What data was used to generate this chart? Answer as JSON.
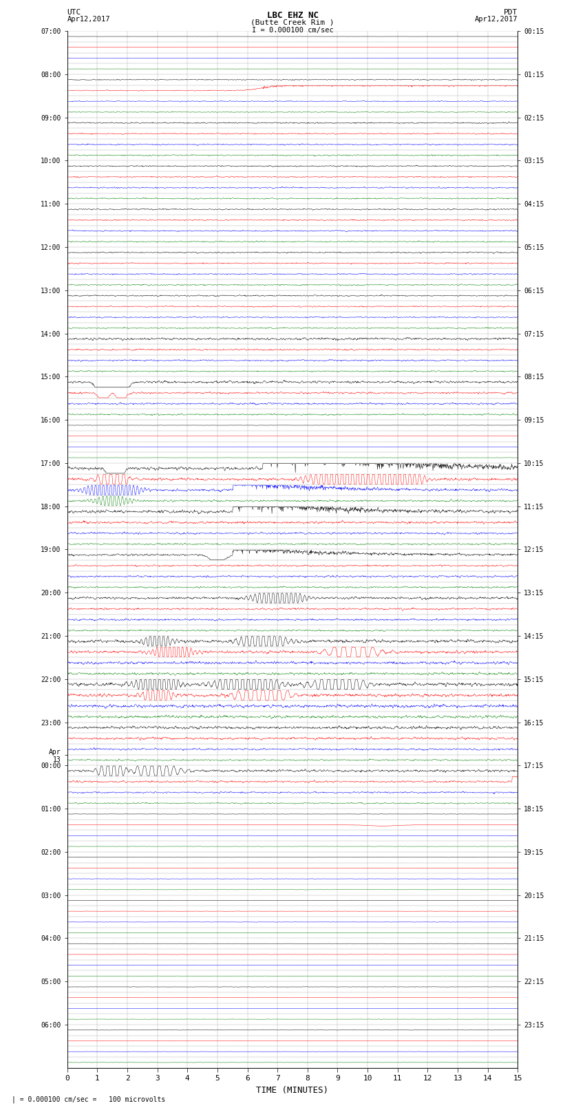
{
  "title_line1": "LBC EHZ NC",
  "title_line2": "(Butte Creek Rim )",
  "scale_text": "I = 0.000100 cm/sec",
  "left_label": "UTC",
  "left_date": "Apr12,2017",
  "right_label": "PDT",
  "right_date": "Apr12,2017",
  "bottom_label": "TIME (MINUTES)",
  "footer_text": "| = 0.000100 cm/sec =   100 microvolts",
  "xlabel_ticks": [
    0,
    1,
    2,
    3,
    4,
    5,
    6,
    7,
    8,
    9,
    10,
    11,
    12,
    13,
    14,
    15
  ],
  "xlim": [
    0,
    15
  ],
  "fig_width": 8.5,
  "fig_height": 16.13,
  "background_color": "#ffffff",
  "grid_color": "#aaaaaa",
  "trace_colors": [
    "black",
    "red",
    "blue",
    "green"
  ],
  "noise_seed": 12345,
  "utc_labels": [
    [
      "07:00",
      0
    ],
    [
      "08:00",
      4
    ],
    [
      "09:00",
      8
    ],
    [
      "10:00",
      12
    ],
    [
      "11:00",
      16
    ],
    [
      "12:00",
      20
    ],
    [
      "13:00",
      24
    ],
    [
      "14:00",
      28
    ],
    [
      "15:00",
      32
    ],
    [
      "16:00",
      36
    ],
    [
      "17:00",
      40
    ],
    [
      "18:00",
      44
    ],
    [
      "19:00",
      48
    ],
    [
      "20:00",
      52
    ],
    [
      "21:00",
      56
    ],
    [
      "22:00",
      60
    ],
    [
      "23:00",
      64
    ],
    [
      "Apr\n13",
      67
    ],
    [
      "00:00",
      68
    ],
    [
      "01:00",
      72
    ],
    [
      "02:00",
      76
    ],
    [
      "03:00",
      80
    ],
    [
      "04:00",
      84
    ],
    [
      "05:00",
      88
    ],
    [
      "06:00",
      92
    ]
  ],
  "pdt_labels": [
    [
      "00:15",
      0
    ],
    [
      "01:15",
      4
    ],
    [
      "02:15",
      8
    ],
    [
      "03:15",
      12
    ],
    [
      "04:15",
      16
    ],
    [
      "05:15",
      20
    ],
    [
      "06:15",
      24
    ],
    [
      "07:15",
      28
    ],
    [
      "08:15",
      32
    ],
    [
      "09:15",
      36
    ],
    [
      "10:15",
      40
    ],
    [
      "11:15",
      44
    ],
    [
      "12:15",
      48
    ],
    [
      "13:15",
      52
    ],
    [
      "14:15",
      56
    ],
    [
      "15:15",
      60
    ],
    [
      "16:15",
      64
    ],
    [
      "17:15",
      68
    ],
    [
      "18:15",
      72
    ],
    [
      "19:15",
      76
    ],
    [
      "20:15",
      80
    ],
    [
      "21:15",
      84
    ],
    [
      "22:15",
      88
    ],
    [
      "23:15",
      92
    ]
  ],
  "num_trace_rows": 96,
  "color_cycle": [
    "black",
    "red",
    "blue",
    "green"
  ]
}
